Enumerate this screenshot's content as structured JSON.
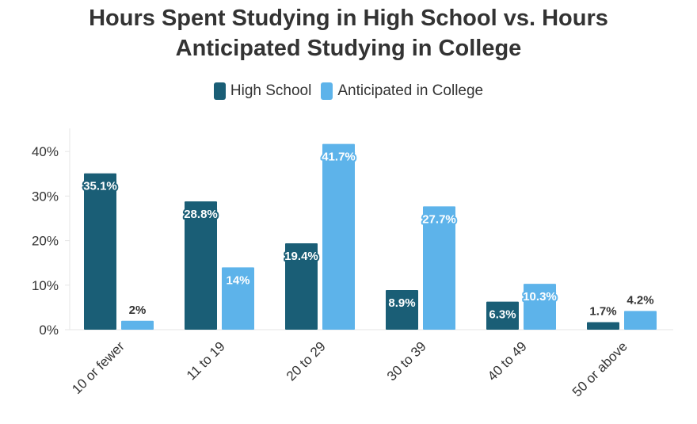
{
  "chart_data": {
    "type": "bar",
    "title_lines": [
      "Hours Spent Studying in High School vs. Hours",
      "Anticipated Studying in College"
    ],
    "categories": [
      "10 or fewer",
      "11 to 19",
      "20 to 29",
      "30 to 39",
      "40 to 49",
      "50 or above"
    ],
    "series": [
      {
        "name": "High School",
        "color": "#1a5e76",
        "values": [
          35.1,
          28.8,
          19.4,
          8.9,
          6.3,
          1.7
        ],
        "labels": [
          "35.1%",
          "28.8%",
          "19.4%",
          "8.9%",
          "6.3%",
          "1.7%"
        ]
      },
      {
        "name": "Anticipated in College",
        "color": "#5db3ea",
        "values": [
          2,
          14,
          41.7,
          27.7,
          10.3,
          4.2
        ],
        "labels": [
          "2%",
          "14%",
          "41.7%",
          "27.7%",
          "10.3%",
          "4.2%"
        ]
      }
    ],
    "ylim": [
      0,
      45
    ],
    "yticks": [
      0,
      10,
      20,
      30,
      40
    ],
    "ytick_labels": [
      "0%",
      "10%",
      "20%",
      "30%",
      "40%"
    ],
    "xlabel": "",
    "ylabel": "",
    "legend_position": "top-center",
    "grid": false
  }
}
